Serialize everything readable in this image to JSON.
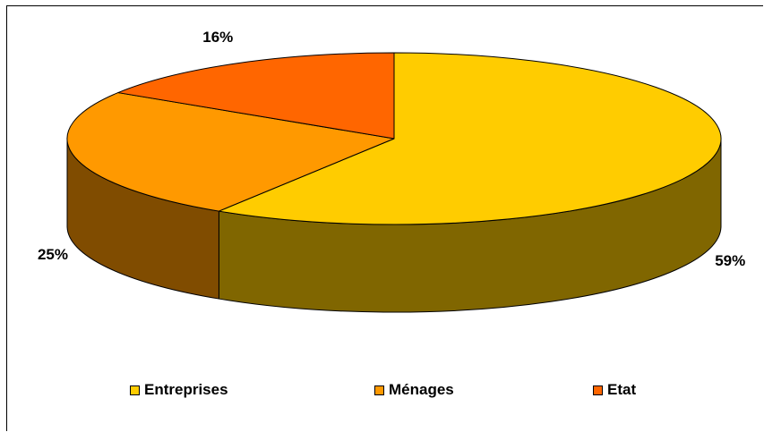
{
  "chart_data": {
    "type": "pie",
    "style": "3d",
    "categories": [
      "Entreprises",
      "Ménages",
      "Etat"
    ],
    "values": [
      59,
      25,
      16
    ],
    "labels": [
      "59%",
      "25%",
      "16%"
    ],
    "colors": {
      "top": [
        "#FFCC00",
        "#FF9900",
        "#FF6600"
      ],
      "side": [
        "#806600",
        "#804C00",
        "#803300"
      ]
    },
    "legend_position": "bottom"
  }
}
